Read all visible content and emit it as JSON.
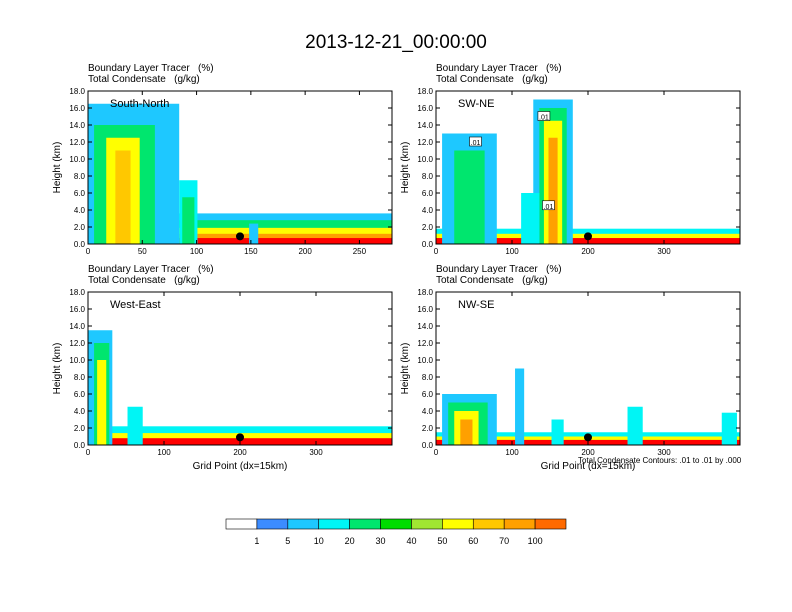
{
  "title": "2013-12-21_00:00:00",
  "header_line1": "Boundary Layer Tracer   (%)",
  "header_line2": "Total Condensate   (g/kg)",
  "footnote": "Total Condensate Contours: .01 to .01 by .000",
  "colors": {
    "levels": [
      "#ffffff",
      "#3c8cff",
      "#1ec8ff",
      "#00f5f5",
      "#00e66e",
      "#00dc00",
      "#a0e632",
      "#ffff00",
      "#ffc800",
      "#ffa000",
      "#ff6a00",
      "#ff0000"
    ]
  },
  "colorbar": {
    "labels": [
      "1",
      "5",
      "10",
      "20",
      "30",
      "40",
      "50",
      "60",
      "70",
      "100"
    ]
  },
  "chart_data": [
    {
      "type": "heatmap",
      "panel_label": "South-North",
      "ylabel": "Height (km)",
      "xlabel": "",
      "xlim": [
        0,
        280
      ],
      "ylim": [
        0,
        18
      ],
      "xticks": [
        "0",
        "50",
        "100",
        "150",
        "200",
        "250"
      ],
      "yticks": [
        "0.0",
        "2.0",
        "4.0",
        "6.0",
        "8.0",
        "10.0",
        "12.0",
        "14.0",
        "16.0",
        "18.0"
      ],
      "marker_x": 140
    },
    {
      "type": "heatmap",
      "panel_label": "SW-NE",
      "ylabel": "Height (km)",
      "xlabel": "",
      "xlim": [
        0,
        400
      ],
      "ylim": [
        0,
        18
      ],
      "xticks": [
        "0",
        "100",
        "200",
        "300"
      ],
      "yticks": [
        "0.0",
        "2.0",
        "4.0",
        "6.0",
        "8.0",
        "10.0",
        "12.0",
        "14.0",
        "16.0",
        "18.0"
      ],
      "marker_x": 200,
      "contour_labels": [
        ".01",
        ".01",
        ".01"
      ]
    },
    {
      "type": "heatmap",
      "panel_label": "West-East",
      "ylabel": "Height (km)",
      "xlabel": "Grid Point (dx=15km)",
      "xlim": [
        0,
        400
      ],
      "ylim": [
        0,
        18
      ],
      "xticks": [
        "0",
        "100",
        "200",
        "300"
      ],
      "yticks": [
        "0.0",
        "2.0",
        "4.0",
        "6.0",
        "8.0",
        "10.0",
        "12.0",
        "14.0",
        "16.0",
        "18.0"
      ],
      "marker_x": 200
    },
    {
      "type": "heatmap",
      "panel_label": "NW-SE",
      "ylabel": "Height (km)",
      "xlabel": "Grid Point (dx=15km)",
      "xlim": [
        0,
        400
      ],
      "ylim": [
        0,
        18
      ],
      "xticks": [
        "0",
        "100",
        "200",
        "300"
      ],
      "yticks": [
        "0.0",
        "2.0",
        "4.0",
        "6.0",
        "8.0",
        "10.0",
        "12.0",
        "14.0",
        "16.0",
        "18.0"
      ],
      "marker_x": 200
    }
  ]
}
